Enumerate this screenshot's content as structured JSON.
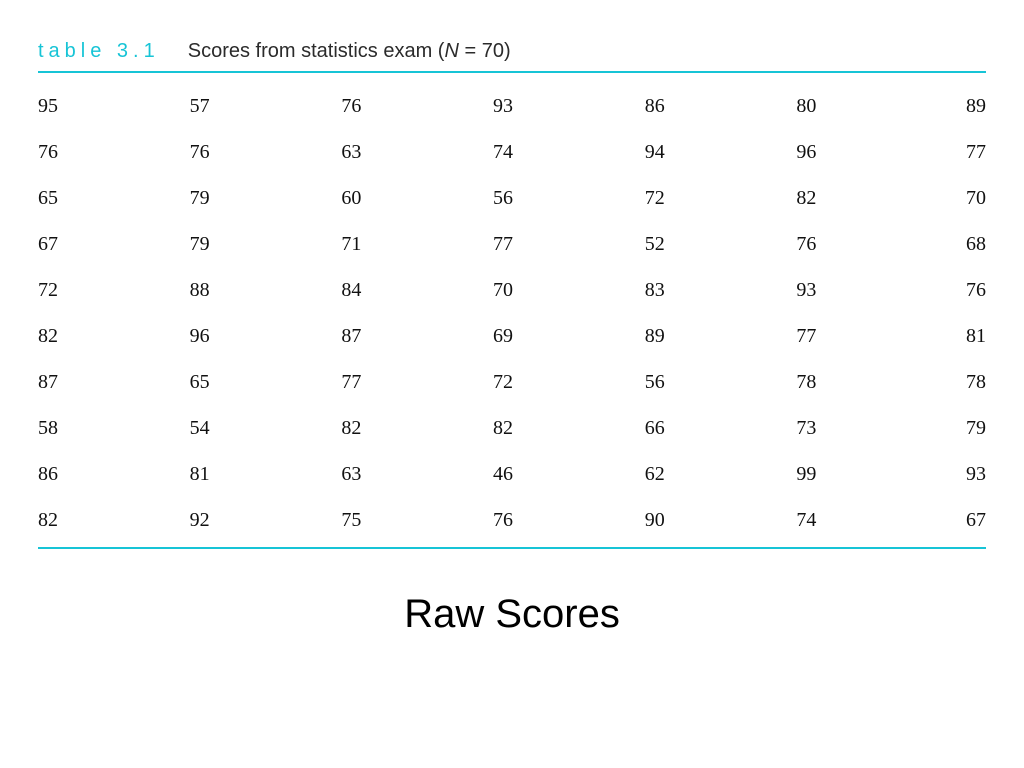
{
  "table": {
    "label": "table 3.1",
    "caption_prefix": "Scores from statistics exam (",
    "caption_var": "N",
    "caption_eq": " = ",
    "caption_value": "70",
    "caption_suffix": ")",
    "accent_color": "#17c4d6",
    "label_color": "#17c4d6",
    "caption_color": "#2b2b2b",
    "label_fontsize": 20,
    "caption_fontsize": 20,
    "label_letter_spacing": 5,
    "cell_fontsize": 20,
    "cell_color": "#111111",
    "n_cols": 7,
    "col_widths_pct": [
      16,
      16,
      16,
      16,
      16,
      15,
      5
    ],
    "rows": [
      [
        95,
        57,
        76,
        93,
        86,
        80,
        89
      ],
      [
        76,
        76,
        63,
        74,
        94,
        96,
        77
      ],
      [
        65,
        79,
        60,
        56,
        72,
        82,
        70
      ],
      [
        67,
        79,
        71,
        77,
        52,
        76,
        68
      ],
      [
        72,
        88,
        84,
        70,
        83,
        93,
        76
      ],
      [
        82,
        96,
        87,
        69,
        89,
        77,
        81
      ],
      [
        87,
        65,
        77,
        72,
        56,
        78,
        78
      ],
      [
        58,
        54,
        82,
        82,
        66,
        73,
        79
      ],
      [
        86,
        81,
        63,
        46,
        62,
        99,
        93
      ],
      [
        82,
        92,
        75,
        76,
        90,
        74,
        67
      ]
    ]
  },
  "title": {
    "text": "Raw Scores",
    "fontsize": 40,
    "color": "#000000"
  },
  "background_color": "#ffffff"
}
